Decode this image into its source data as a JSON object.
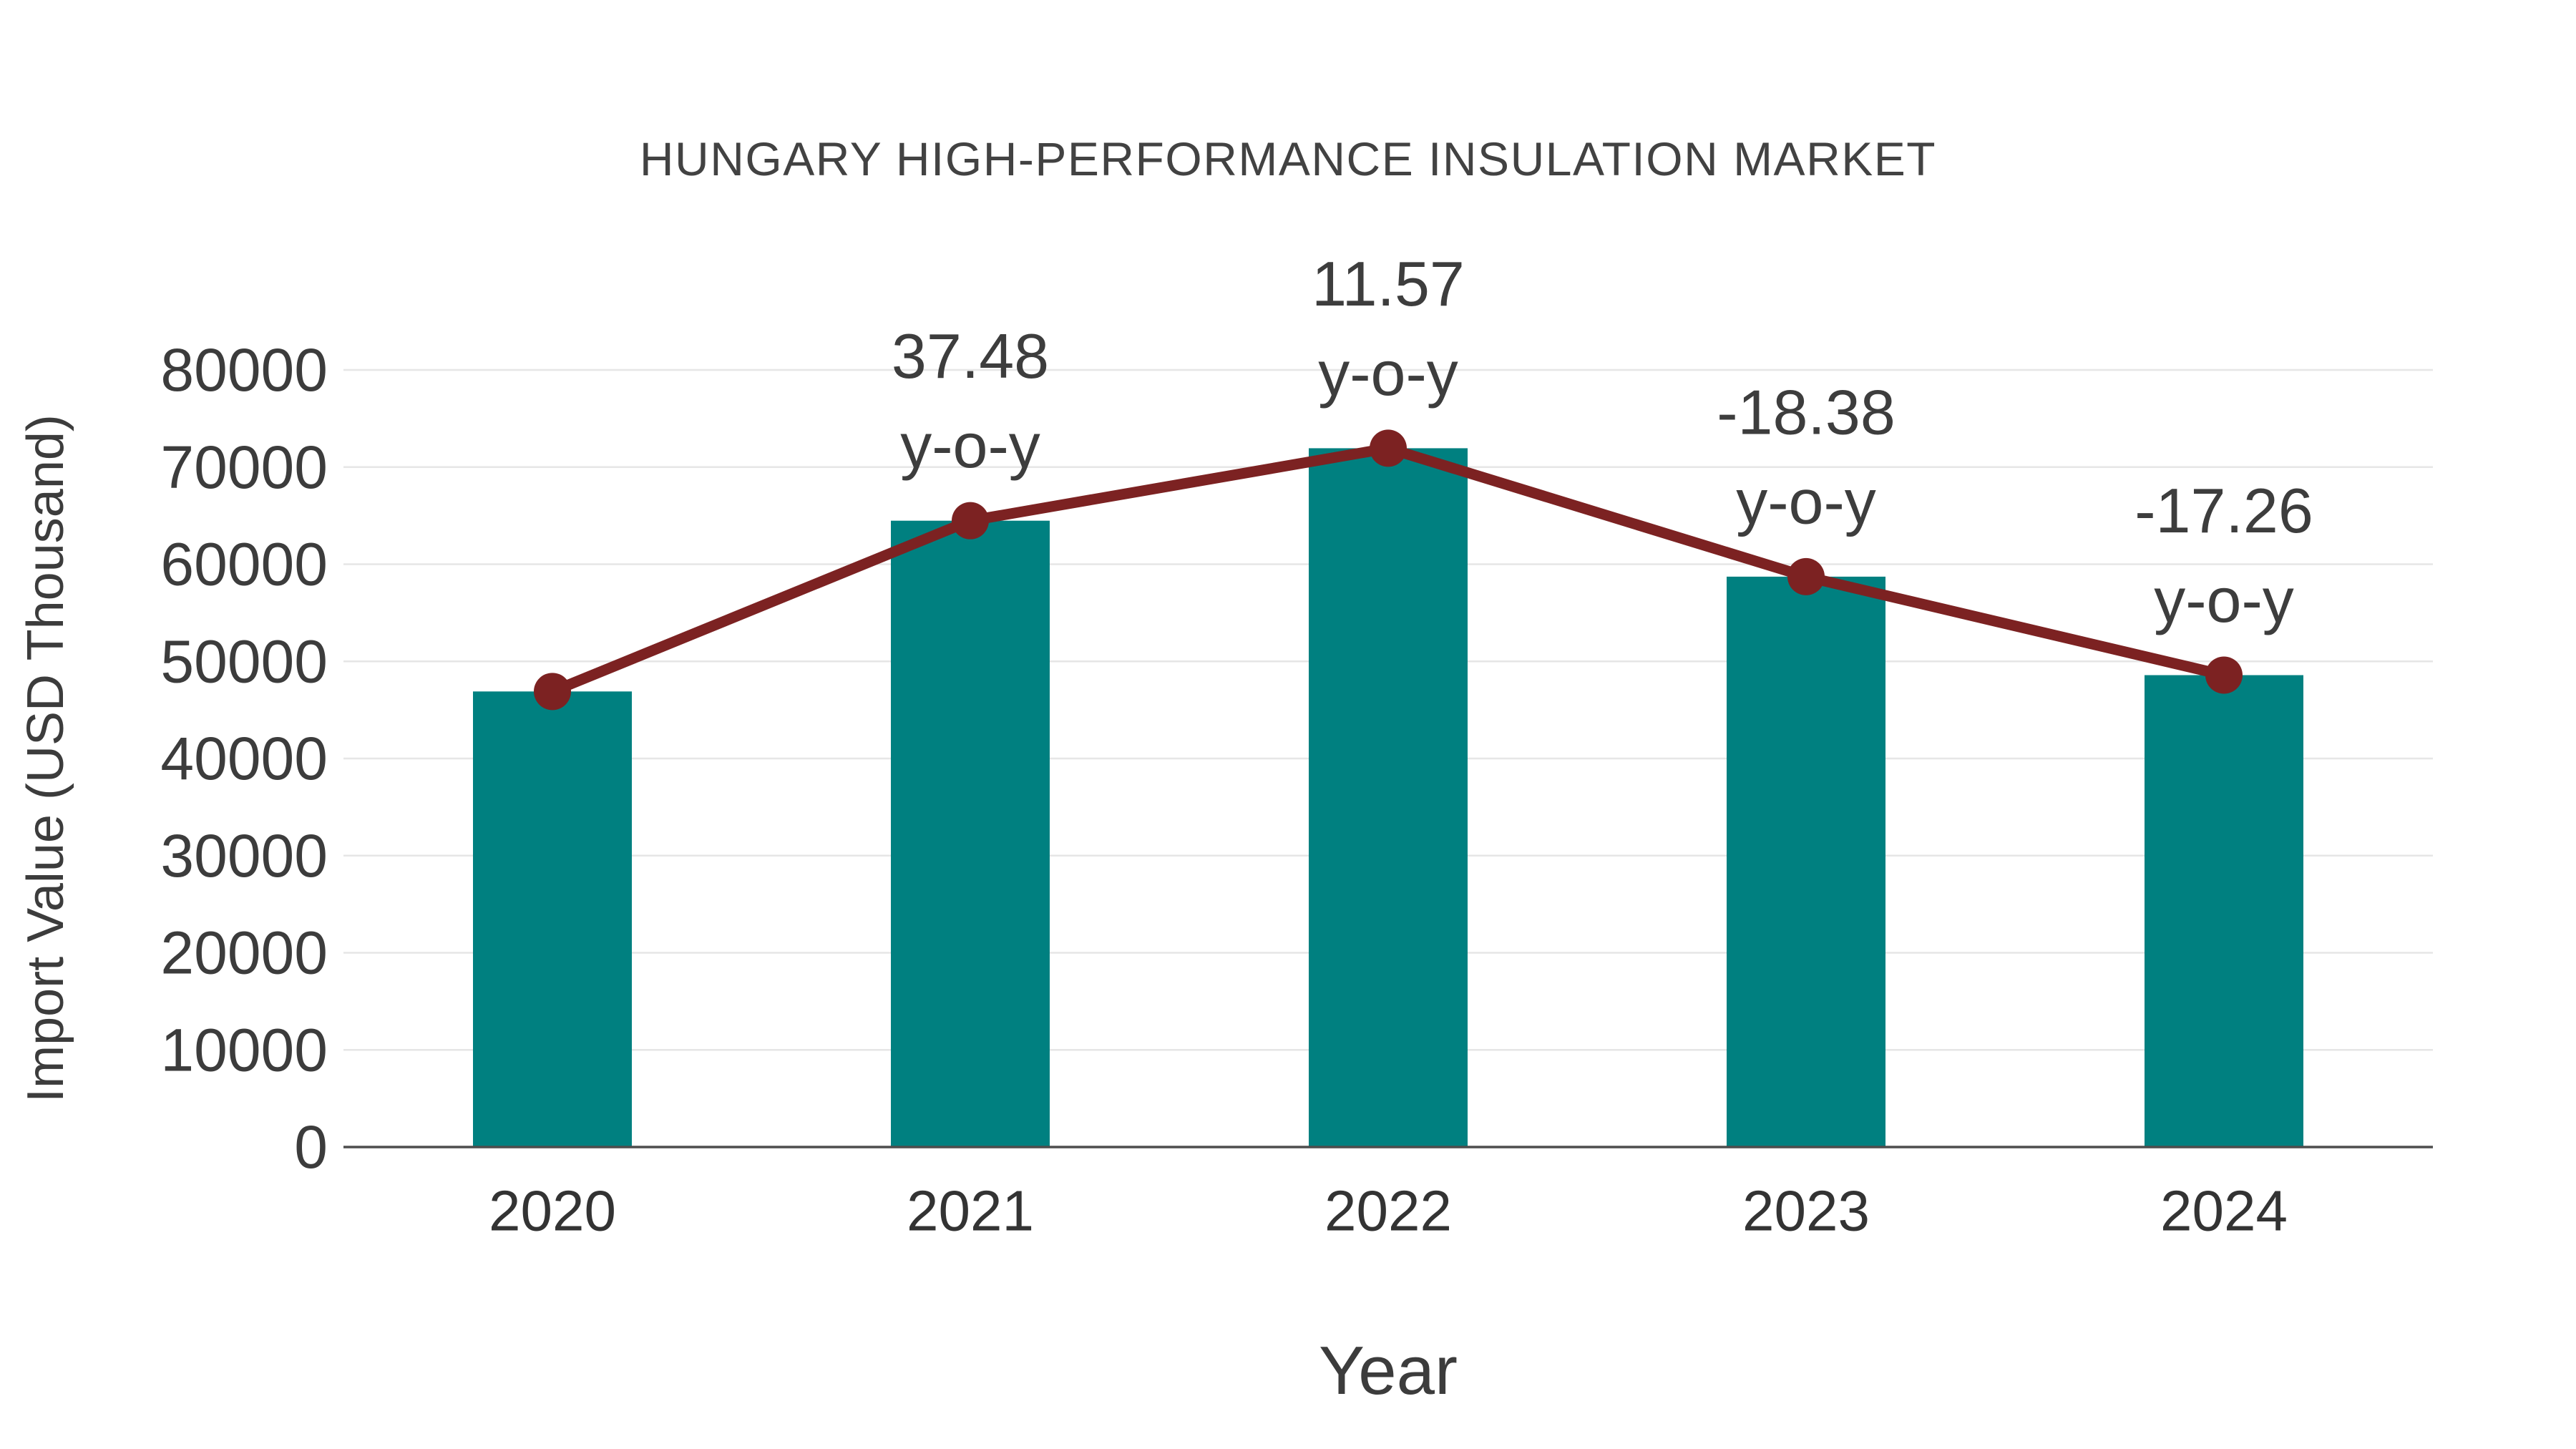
{
  "chart_data": {
    "type": "bar",
    "title": "HUNGARY HIGH-PERFORMANCE INSULATION MARKET",
    "xlabel": "Year",
    "ylabel": "Import Value (USD Thousand)",
    "categories": [
      "2020",
      "2021",
      "2022",
      "2023",
      "2024"
    ],
    "series": [
      {
        "name": "bar-series",
        "type": "bar",
        "values": [
          46900,
          64480,
          71940,
          58720,
          48580
        ]
      },
      {
        "name": "line-series",
        "type": "line",
        "values": [
          46900,
          64480,
          71940,
          58720,
          48580
        ]
      }
    ],
    "annotations": [
      {
        "category": "2021",
        "label": "37.48",
        "sublabel": "y-o-y"
      },
      {
        "category": "2022",
        "label": "11.57",
        "sublabel": "y-o-y"
      },
      {
        "category": "2023",
        "label": "-18.38",
        "sublabel": "y-o-y"
      },
      {
        "category": "2024",
        "label": "-17.26",
        "sublabel": "y-o-y"
      }
    ],
    "ylim": [
      0,
      80000
    ],
    "yticks": [
      0,
      10000,
      20000,
      30000,
      40000,
      50000,
      60000,
      70000,
      80000
    ],
    "grid": "horizontal",
    "legend": "none",
    "colors": {
      "bar": "#008080",
      "line": "#7c2222",
      "grid": "#e6e6e6",
      "axis": "#4d4d4d",
      "title": "#424242",
      "tick_text": "#3c3c3c",
      "annotation_text": "#3d3d3d"
    }
  }
}
